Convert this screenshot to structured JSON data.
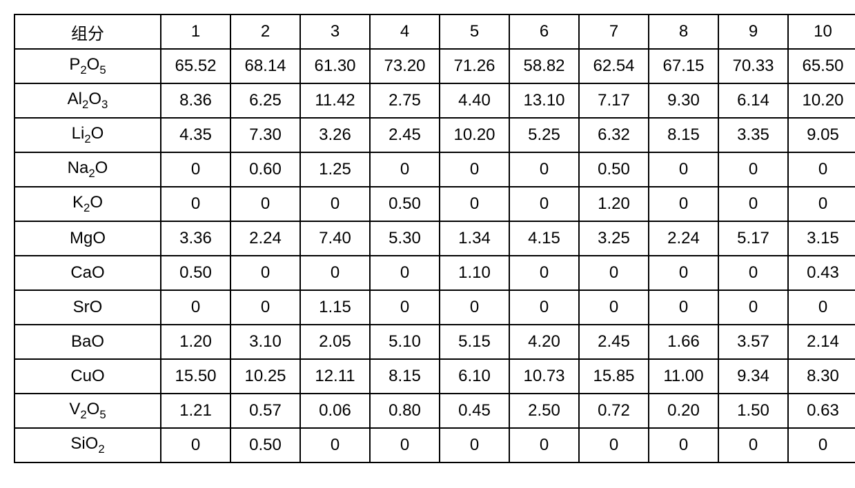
{
  "table": {
    "border_color": "#000000",
    "background_color": "#ffffff",
    "text_color": "#000000",
    "font_size_pt": 18,
    "header_label": "组分",
    "column_numbers": [
      "1",
      "2",
      "3",
      "4",
      "5",
      "6",
      "7",
      "8",
      "9",
      "10"
    ],
    "components": [
      {
        "formula": "P2O5",
        "html": "P<sub>2</sub>O<sub>5</sub>",
        "values": [
          "65.52",
          "68.14",
          "61.30",
          "73.20",
          "71.26",
          "58.82",
          "62.54",
          "67.15",
          "70.33",
          "65.50"
        ]
      },
      {
        "formula": "Al2O3",
        "html": "Al<sub>2</sub>O<sub>3</sub>",
        "values": [
          "8.36",
          "6.25",
          "11.42",
          "2.75",
          "4.40",
          "13.10",
          "7.17",
          "9.30",
          "6.14",
          "10.20"
        ]
      },
      {
        "formula": "Li2O",
        "html": "Li<sub>2</sub>O",
        "values": [
          "4.35",
          "7.30",
          "3.26",
          "2.45",
          "10.20",
          "5.25",
          "6.32",
          "8.15",
          "3.35",
          "9.05"
        ]
      },
      {
        "formula": "Na2O",
        "html": "Na<sub>2</sub>O",
        "values": [
          "0",
          "0.60",
          "1.25",
          "0",
          "0",
          "0",
          "0.50",
          "0",
          "0",
          "0"
        ]
      },
      {
        "formula": "K2O",
        "html": "K<sub>2</sub>O",
        "values": [
          "0",
          "0",
          "0",
          "0.50",
          "0",
          "0",
          "1.20",
          "0",
          "0",
          "0"
        ]
      },
      {
        "formula": "MgO",
        "html": "MgO",
        "values": [
          "3.36",
          "2.24",
          "7.40",
          "5.30",
          "1.34",
          "4.15",
          "3.25",
          "2.24",
          "5.17",
          "3.15"
        ]
      },
      {
        "formula": "CaO",
        "html": "CaO",
        "values": [
          "0.50",
          "0",
          "0",
          "0",
          "1.10",
          "0",
          "0",
          "0",
          "0",
          "0.43"
        ]
      },
      {
        "formula": "SrO",
        "html": "SrO",
        "values": [
          "0",
          "0",
          "1.15",
          "0",
          "0",
          "0",
          "0",
          "0",
          "0",
          "0"
        ]
      },
      {
        "formula": "BaO",
        "html": "BaO",
        "values": [
          "1.20",
          "3.10",
          "2.05",
          "5.10",
          "5.15",
          "4.20",
          "2.45",
          "1.66",
          "3.57",
          "2.14"
        ]
      },
      {
        "formula": "CuO",
        "html": "CuO",
        "values": [
          "15.50",
          "10.25",
          "12.11",
          "8.15",
          "6.10",
          "10.73",
          "15.85",
          "11.00",
          "9.34",
          "8.30"
        ]
      },
      {
        "formula": "V2O5",
        "html": "V<sub>2</sub>O<sub>5</sub>",
        "values": [
          "1.21",
          "0.57",
          "0.06",
          "0.80",
          "0.45",
          "2.50",
          "0.72",
          "0.20",
          "1.50",
          "0.63"
        ]
      },
      {
        "formula": "SiO2",
        "html": "SiO<sub>2</sub>",
        "values": [
          "0",
          "0.50",
          "0",
          "0",
          "0",
          "0",
          "0",
          "0",
          "0",
          "0"
        ]
      }
    ]
  }
}
